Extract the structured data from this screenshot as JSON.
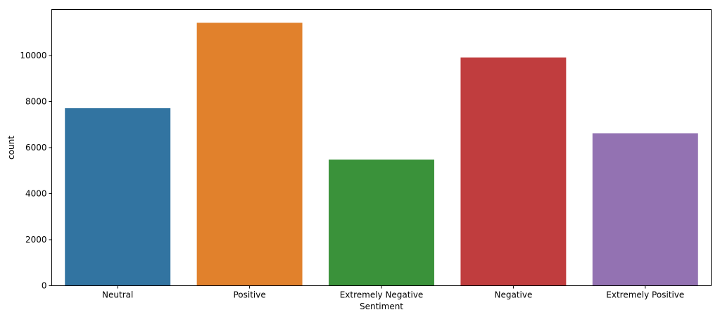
{
  "chart_data": {
    "type": "bar",
    "categories": [
      "Neutral",
      "Positive",
      "Extremely Negative",
      "Negative",
      "Extremely Positive"
    ],
    "values": [
      7713,
      11422,
      5481,
      9917,
      6624
    ],
    "colors": [
      "#3274a1",
      "#e1812c",
      "#3a923a",
      "#c03d3e",
      "#9372b2"
    ],
    "xlabel": "Sentiment",
    "ylabel": "count",
    "ylim": [
      0,
      12000
    ],
    "yticks": [
      0,
      2000,
      4000,
      6000,
      8000,
      10000
    ],
    "grid": false,
    "legend": "none"
  }
}
